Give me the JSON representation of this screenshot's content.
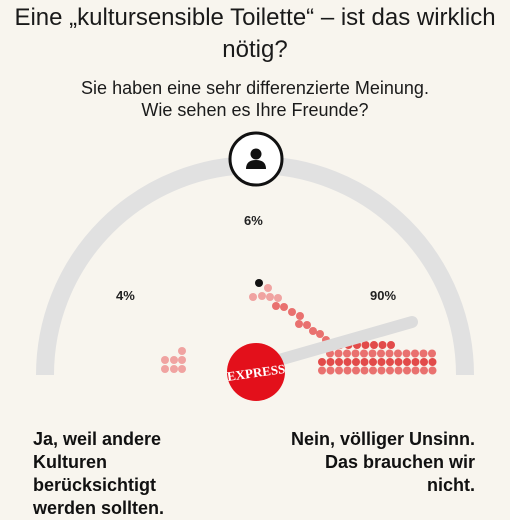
{
  "title": "Eine „kultursensible Toilette“ – ist das wirklich nötig?",
  "subtitle_line1": "Sie haben eine sehr differenzierte Meinung.",
  "subtitle_line2": "Wie sehen es Ihre Freunde?",
  "options": [
    {
      "id": "ja",
      "percent_label": "4%",
      "answer_lines": [
        "Ja, weil andere",
        "Kulturen",
        "berücksichtigt",
        "werden sollten."
      ]
    },
    {
      "id": "middle",
      "percent_label": "6%"
    },
    {
      "id": "nein",
      "percent_label": "90%",
      "answer_lines": [
        "Nein, völliger Unsinn.",
        "Das brauchen wir",
        "nicht."
      ]
    }
  ],
  "logo_text": "EXPRESS",
  "user_icon": "user-icon",
  "colors": {
    "background": "#f8f5ee",
    "gauge_track": "#e1e1e1",
    "dot_light": "#f0a3a1",
    "dot_mid": "#e9716f",
    "dot_strong": "#e24b4a",
    "user_dot": "#111111",
    "needle": "#dcdcdc",
    "logo_red": "#e3101b"
  }
}
